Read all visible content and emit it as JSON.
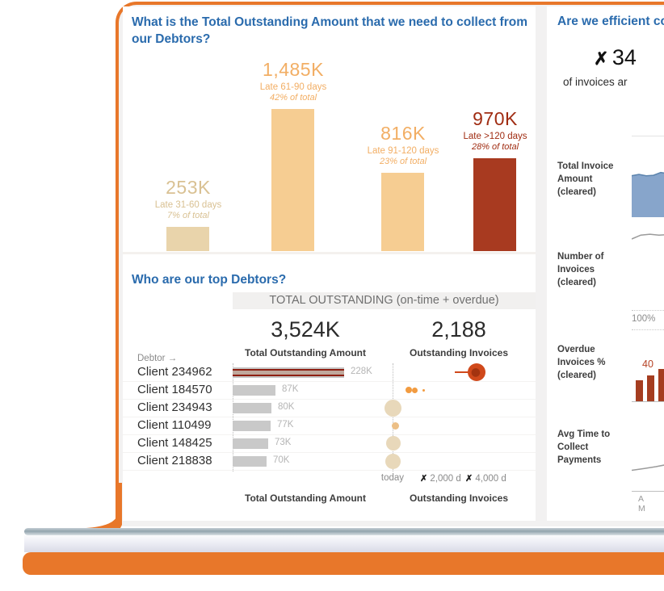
{
  "accent_color": "#E8772A",
  "title_color": "#2a6bad",
  "chart_data": [
    {
      "id": "aging",
      "type": "bar",
      "title": "What is the Total Outstanding Amount that we need to collect from our Debtors?",
      "categories": [
        "Late 31-60 days",
        "Late 61-90 days",
        "Late 91-120 days",
        "Late >120 days"
      ],
      "values": [
        253,
        1485,
        816,
        970
      ],
      "value_labels": [
        "253K",
        "1,485K",
        "816K",
        "970K"
      ],
      "pct_labels": [
        "7% of total",
        "42% of total",
        "23% of total",
        "28% of total"
      ],
      "bar_colors": [
        "#e9d4ab",
        "#f6cd92",
        "#f6cd92",
        "#a83a20"
      ],
      "text_colors": [
        "#d9c193",
        "#f2ae64",
        "#f2ae64",
        "#a02c12"
      ],
      "unit": "K",
      "ylim": [
        0,
        1485
      ],
      "grid": false
    },
    {
      "id": "debtors",
      "type": "table",
      "title": "Who are our top Debtors?",
      "band_header": "TOTAL OUTSTANDING (on-time + overdue)",
      "totals": {
        "amount_value": "3,524K",
        "amount_label": "Total Outstanding Amount",
        "invoices_value": "2,188",
        "invoices_label": "Outstanding Invoices"
      },
      "row_axis_label": "Debtor →",
      "rows": [
        {
          "name": "Client 234962",
          "amount": 228,
          "amount_label": "228K",
          "striped": true,
          "dots": [
            {
              "days": 4000,
              "d": 22,
              "color": "red",
              "leader": true
            }
          ]
        },
        {
          "name": "Client 184570",
          "amount": 87,
          "amount_label": "87K",
          "dots": [
            {
              "days": 760,
              "d": 8,
              "color": "orange"
            },
            {
              "days": 1060,
              "d": 7,
              "color": "orange"
            },
            {
              "days": 1480,
              "d": 3,
              "color": "orange"
            }
          ]
        },
        {
          "name": "Client 234943",
          "amount": 80,
          "amount_label": "80K",
          "dots": [
            {
              "days": 30,
              "d": 21,
              "color": "beige"
            }
          ]
        },
        {
          "name": "Client 110499",
          "amount": 77,
          "amount_label": "77K",
          "dots": [
            {
              "days": 120,
              "d": 9,
              "color": "tan"
            }
          ]
        },
        {
          "name": "Client 148425",
          "amount": 73,
          "amount_label": "73K",
          "dots": [
            {
              "days": 30,
              "d": 18,
              "color": "beige"
            }
          ]
        },
        {
          "name": "Client 218838",
          "amount": 70,
          "amount_label": "70K",
          "dots": [
            {
              "days": 0,
              "d": 19,
              "color": "beige"
            }
          ]
        }
      ],
      "x_axis": {
        "today": "today",
        "tick1_x": "✗",
        "tick1": "2,000 d",
        "tick2_x": "✗",
        "tick2": "4,000 d",
        "max_days": 4000
      },
      "footer": {
        "col1": "Total Outstanding Amount",
        "col2": "Outstanding Invoices"
      }
    },
    {
      "id": "efficiency",
      "type": "table",
      "title": "Are we efficient co",
      "big_stat": {
        "icon": "✗",
        "value": "34"
      },
      "subtitle": "of invoices ar",
      "rows": [
        {
          "label": "Total Invoice\nAmount\n(cleared)",
          "spark": {
            "kind": "area",
            "color": "#87a5cb",
            "stroke": "#5b83ad",
            "points": [
              0.9,
              0.93,
              0.9,
              0.91,
              0.97,
              0.95
            ]
          }
        },
        {
          "label": "Number of\nInvoices\n(cleared)",
          "spark": {
            "kind": "line",
            "color": "#9b9b9b",
            "points": [
              0.25,
              0.55,
              0.62,
              0.55,
              0.58
            ]
          }
        },
        {
          "label": "Overdue\nInvoices %\n(cleared)",
          "ref_label": "100%",
          "annotation": "40",
          "spark": {
            "kind": "bars",
            "color": "#a53d20",
            "points": [
              0.62,
              0.75,
              0.95
            ]
          }
        },
        {
          "label": "Avg Time to\nCollect\nPayments",
          "axis_label": "A M",
          "spark": {
            "kind": "line",
            "color": "#9b9b9b",
            "points": [
              0.22,
              0.35,
              0.5,
              0.68
            ]
          }
        }
      ]
    }
  ]
}
